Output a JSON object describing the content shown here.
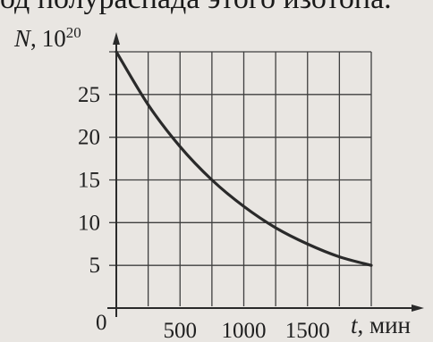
{
  "header_text": "од полураспада этого изотопа.",
  "colors": {
    "background": "#e9e6e2",
    "ink": "#2a2a2a",
    "grid": "#3f3f3f"
  },
  "chart_data": {
    "type": "line",
    "title": "",
    "xlabel": "t, мин",
    "ylabel": "N, 10^20",
    "ylabel_parts": {
      "symbol": "N",
      "comma": ",",
      "base": "10",
      "exponent": "20"
    },
    "xlabel_parts": {
      "symbol": "t",
      "unit": ", мин"
    },
    "origin_label": "0",
    "xlim": [
      0,
      2000
    ],
    "ylim": [
      0,
      30
    ],
    "xticks": [
      500,
      1000,
      1500
    ],
    "xtick_labels": [
      "500",
      "1000",
      "1500"
    ],
    "yticks": [
      5,
      10,
      15,
      20,
      25
    ],
    "ytick_labels": [
      "5",
      "10",
      "15",
      "20",
      "25"
    ],
    "grid": true,
    "x_grid_step": 250,
    "y_grid_step": 5,
    "series": [
      {
        "x": [
          0,
          250,
          500,
          750,
          1000,
          1250,
          1500,
          1750,
          2000
        ],
        "y": [
          30,
          23.8,
          18.9,
          15.0,
          11.9,
          9.4,
          7.5,
          6.0,
          5.0
        ]
      }
    ]
  }
}
